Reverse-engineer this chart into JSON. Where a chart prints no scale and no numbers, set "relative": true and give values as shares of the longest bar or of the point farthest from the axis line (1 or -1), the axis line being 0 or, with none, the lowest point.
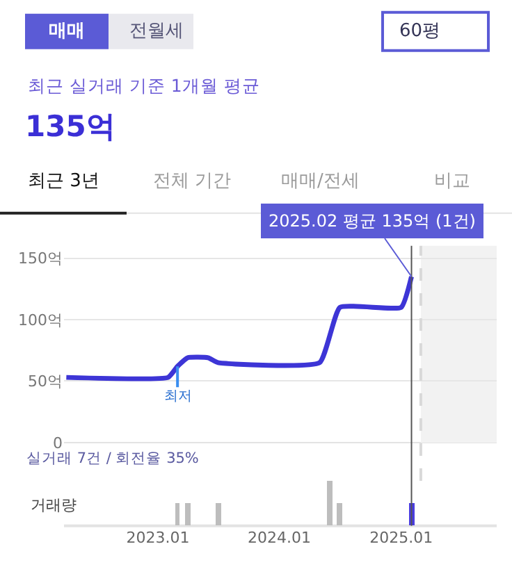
{
  "chart_data": [
    {
      "type": "line",
      "line_style": "solid",
      "marker": "none",
      "grid": "y",
      "tick_labels": "y",
      "x": [
        "2022-04",
        "2023-02",
        "2023-03",
        "2023-04",
        "2023-06",
        "2023-07",
        "2024-05",
        "2024-07",
        "2025-01",
        "2025-02"
      ],
      "series": [
        {
          "color": "#3d35d6",
          "values": [
            53,
            53,
            62,
            69,
            69,
            65,
            65,
            110,
            110,
            135
          ]
        }
      ],
      "xlim": [
        "2022-03-25",
        "2025-10-15"
      ],
      "ylim": [
        0,
        160
      ],
      "yticks": [
        {
          "value": 0,
          "label": "0"
        },
        {
          "value": 50,
          "label": "50억"
        },
        {
          "value": 100,
          "label": "100억"
        },
        {
          "value": 150,
          "label": "150억"
        }
      ],
      "bands": [
        {
          "axis": "x",
          "from": "2025-03",
          "to": "2025-10-15",
          "color": "#f2f2f2"
        }
      ],
      "ref_lines": [
        {
          "axis": "x",
          "value": "2025-03",
          "line_style": "dashed",
          "color": "#d9d9d9"
        },
        {
          "axis": "x",
          "value": "2025-02",
          "line_style": "solid",
          "color": "#555555"
        }
      ],
      "annotations": [
        "매매",
        "전월세",
        "60평",
        "최근 실거래 기준 1개월 평균",
        "135억",
        "최근 3년",
        "전체 기간",
        "매매/전세",
        "비교",
        {
          "text": "2025.02 평균 135억 (1건)",
          "x": "2025-02",
          "y": 135
        },
        {
          "text": "최저",
          "x": "2023-03",
          "y": 62
        }
      ]
    },
    {
      "type": "bar",
      "relative": true,
      "tick_labels": "x",
      "ylabel": "거래량",
      "x": [
        "2023-03",
        "2023-04",
        "2023-07",
        "2024-06",
        "2024-07",
        "2025-02"
      ],
      "values": [
        0.5,
        0.5,
        0.5,
        1,
        0.5,
        0.5
      ],
      "colors": [
        "#bdbdbd",
        "#bdbdbd",
        "#bdbdbd",
        "#bdbdbd",
        "#bdbdbd",
        "#4a3de0"
      ],
      "xlim": [
        "2022-03-25",
        "2025-10-15"
      ],
      "xticks": [
        {
          "value": "2023-01",
          "label": "2023.01"
        },
        {
          "value": "2024-01",
          "label": "2024.01"
        },
        {
          "value": "2025-01",
          "label": "2025.01"
        }
      ],
      "annotations": [
        "실거래 7건 / 회전율 35%"
      ]
    }
  ]
}
